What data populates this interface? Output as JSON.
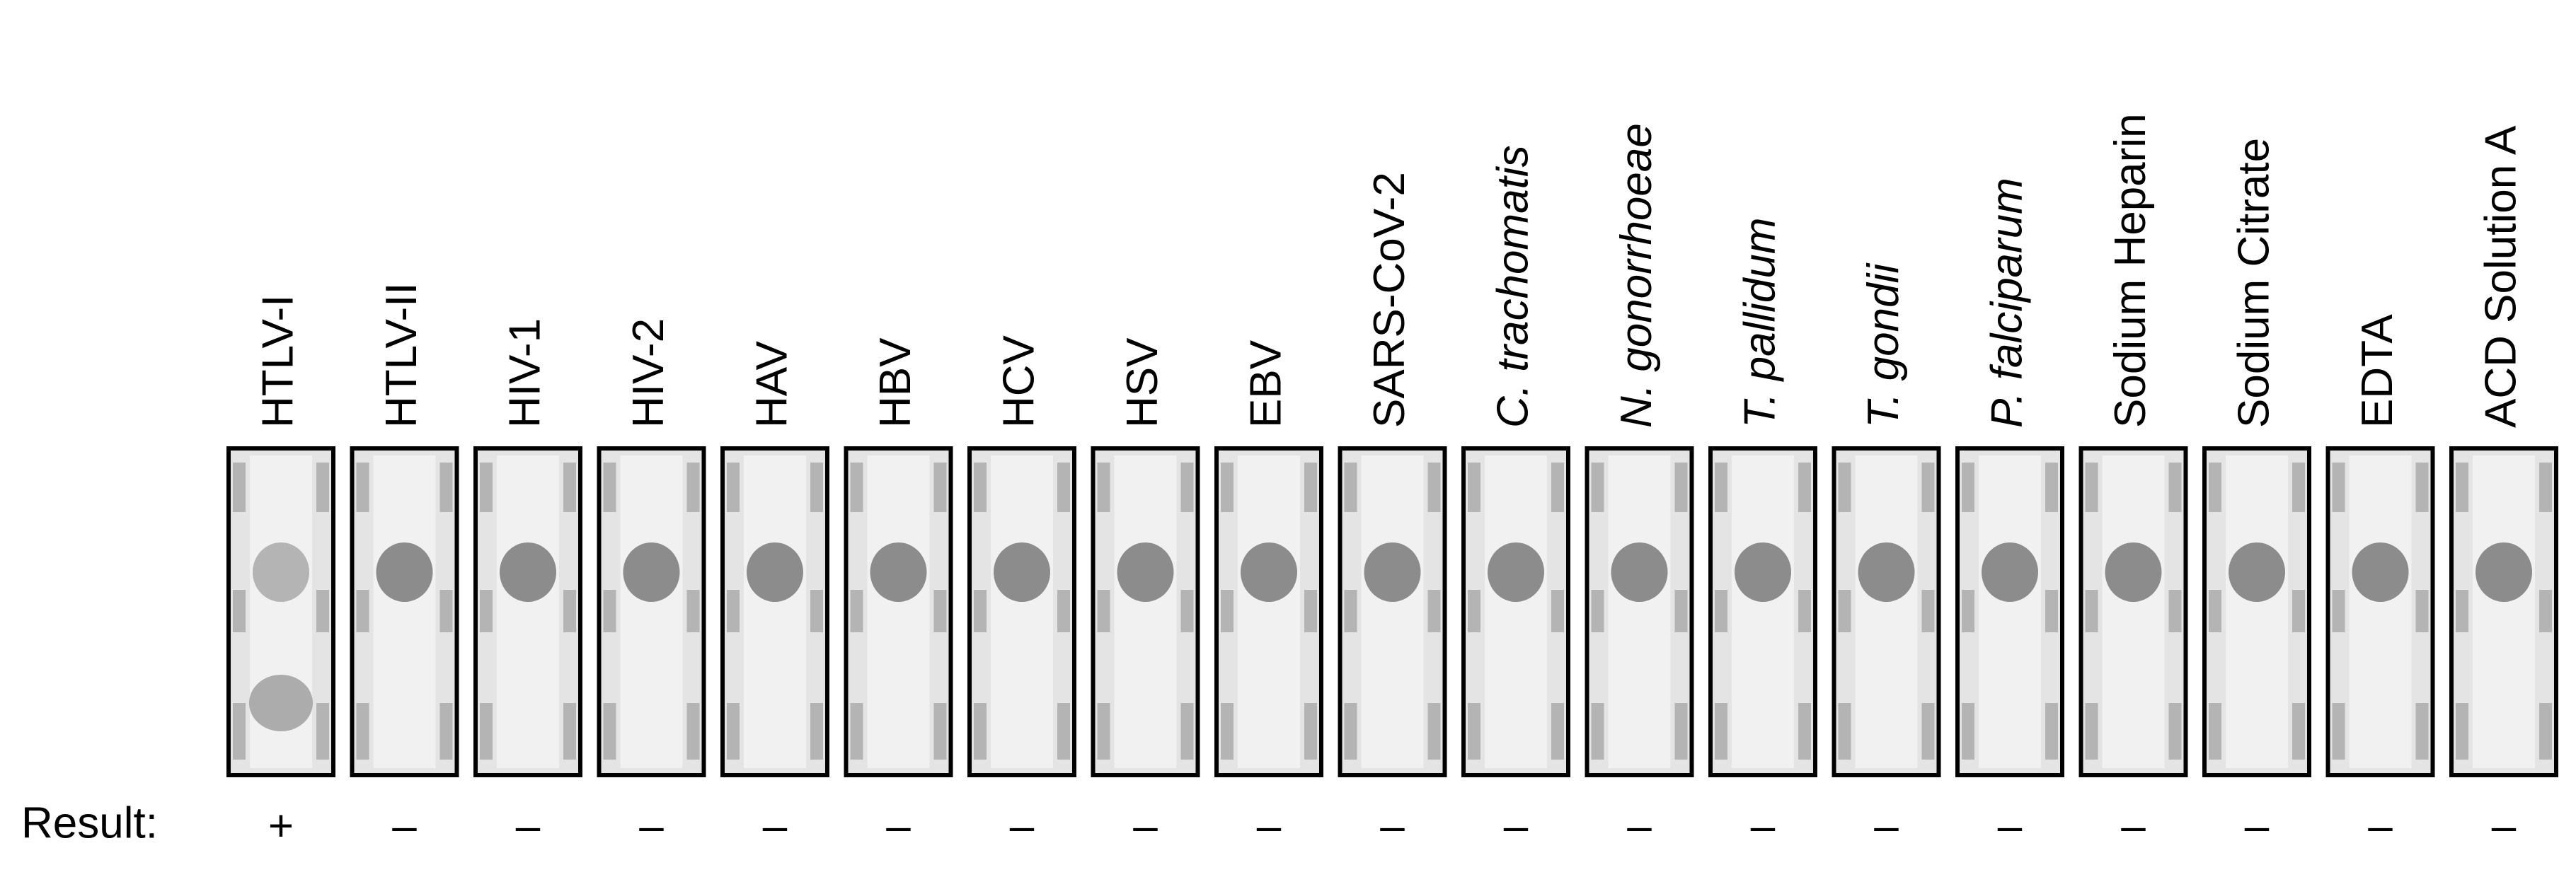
{
  "result_label": "Result:",
  "strips": [
    {
      "label": "HTLV-I",
      "italic": false,
      "result": "+"
    },
    {
      "label": "HTLV-II",
      "italic": false,
      "result": "–"
    },
    {
      "label": "HIV-1",
      "italic": false,
      "result": "–"
    },
    {
      "label": "HIV-2",
      "italic": false,
      "result": "–"
    },
    {
      "label": "HAV",
      "italic": false,
      "result": "–"
    },
    {
      "label": "HBV",
      "italic": false,
      "result": "–"
    },
    {
      "label": "HCV",
      "italic": false,
      "result": "–"
    },
    {
      "label": "HSV",
      "italic": false,
      "result": "–"
    },
    {
      "label": "EBV",
      "italic": false,
      "result": "–"
    },
    {
      "label": "SARS-CoV-2",
      "italic": false,
      "result": "–"
    },
    {
      "label": "C. trachomatis",
      "italic": true,
      "result": "–"
    },
    {
      "label": "N. gonorrhoeae",
      "italic": true,
      "result": "–"
    },
    {
      "label": "T. pallidum",
      "italic": true,
      "result": "–"
    },
    {
      "label": "T. gondii",
      "italic": true,
      "result": "–"
    },
    {
      "label": "P. falciparum",
      "italic": true,
      "result": "–"
    },
    {
      "label": "Sodium Heparin",
      "italic": false,
      "result": "–"
    },
    {
      "label": "Sodium Citrate",
      "italic": false,
      "result": "–"
    },
    {
      "label": "EDTA",
      "italic": false,
      "result": "–"
    },
    {
      "label": "ACD Solution A",
      "italic": false,
      "result": "–"
    }
  ]
}
